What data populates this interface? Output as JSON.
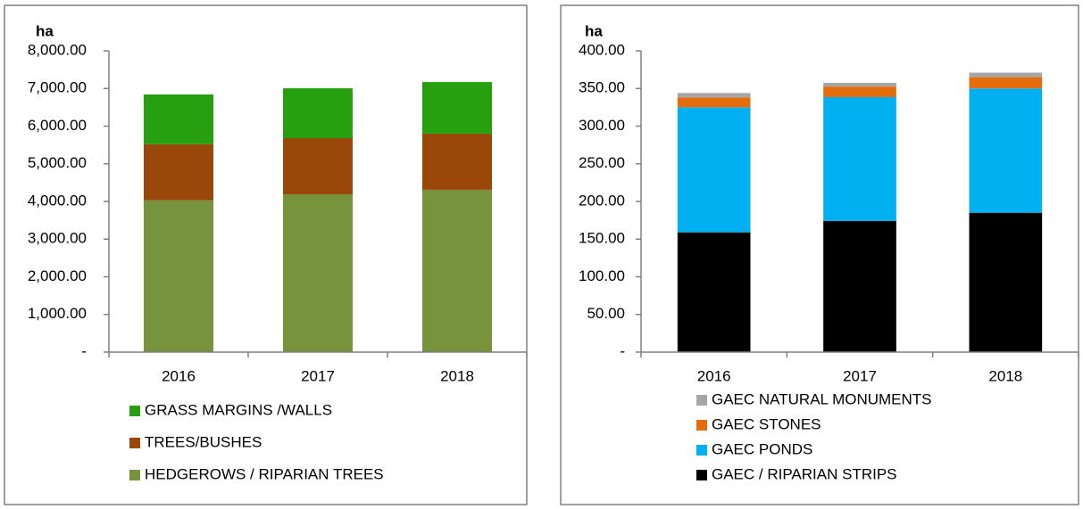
{
  "chart_data": [
    {
      "type": "bar",
      "stacked": true,
      "y_label": "ha",
      "categories": [
        "2016",
        "2017",
        "2018"
      ],
      "series": [
        {
          "name": "HEDGEROWS / RIPARIAN TREES",
          "color": "#77933c",
          "values": [
            4030,
            4190,
            4310
          ]
        },
        {
          "name": "TREES/BUSHES",
          "color": "#9a470a",
          "values": [
            1490,
            1490,
            1490
          ]
        },
        {
          "name": "GRASS MARGINS /WALLS",
          "color": "#26a00f",
          "values": [
            1320,
            1325,
            1370
          ]
        }
      ],
      "ylim": [
        0,
        8000
      ],
      "yticks": [
        {
          "value": 0,
          "label": "-"
        },
        {
          "value": 1000,
          "label": "1,000.00"
        },
        {
          "value": 2000,
          "label": "2,000.00"
        },
        {
          "value": 3000,
          "label": "3,000.00"
        },
        {
          "value": 4000,
          "label": "4,000.00"
        },
        {
          "value": 5000,
          "label": "5,000.00"
        },
        {
          "value": 6000,
          "label": "6,000.00"
        },
        {
          "value": 7000,
          "label": "7,000.00"
        },
        {
          "value": 8000,
          "label": "8,000.00"
        }
      ],
      "grid": false,
      "legend": "bottom"
    },
    {
      "type": "bar",
      "stacked": true,
      "y_label": "ha",
      "categories": [
        "2016",
        "2017",
        "2018"
      ],
      "series": [
        {
          "name": "GAEC / RIPARIAN STRIPS",
          "color": "#000000",
          "values": [
            159,
            174,
            185
          ]
        },
        {
          "name": "GAEC PONDS",
          "color": "#00b0f0",
          "values": [
            166,
            164.5,
            165
          ]
        },
        {
          "name": "GAEC STONES",
          "color": "#e46c0a",
          "values": [
            13,
            14,
            15
          ]
        },
        {
          "name": "GAEC NATURAL MONUMENTS",
          "color": "#a6a6a6",
          "values": [
            6,
            5,
            6
          ]
        }
      ],
      "ylim": [
        0,
        400
      ],
      "yticks": [
        {
          "value": 0,
          "label": "-"
        },
        {
          "value": 50,
          "label": "50.00"
        },
        {
          "value": 100,
          "label": "100.00"
        },
        {
          "value": 150,
          "label": "150.00"
        },
        {
          "value": 200,
          "label": "200.00"
        },
        {
          "value": 250,
          "label": "250.00"
        },
        {
          "value": 300,
          "label": "300.00"
        },
        {
          "value": 350,
          "label": "350.00"
        },
        {
          "value": 400,
          "label": "400.00"
        }
      ],
      "grid": false,
      "legend": "bottom"
    }
  ]
}
